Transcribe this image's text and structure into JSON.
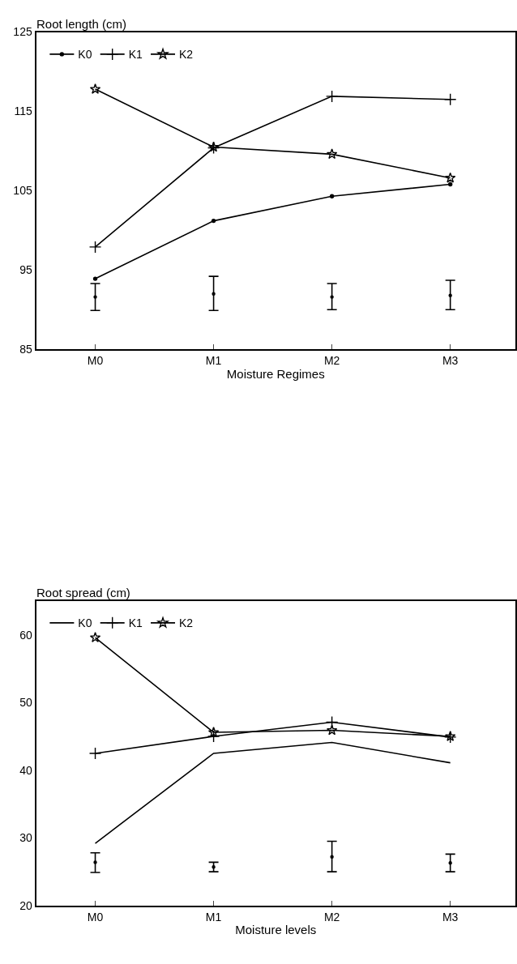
{
  "chart_data": [
    {
      "type": "line",
      "ylabel": "Root length (cm)",
      "xlabel": "Moisture Regimes",
      "categories": [
        "M0",
        "M1",
        "M2",
        "M3"
      ],
      "ylim": [
        85,
        125
      ],
      "yticks": [
        85,
        95,
        105,
        115,
        125
      ],
      "legend": "top left",
      "line_style": "solid",
      "series": [
        {
          "name": "K0",
          "color": "#000000",
          "marker": "circle",
          "values": [
            93.9,
            101.2,
            104.3,
            105.8
          ]
        },
        {
          "name": "K1",
          "color": "#000000",
          "marker": "cross",
          "values": [
            97.9,
            110.4,
            116.9,
            116.5
          ]
        },
        {
          "name": "K2",
          "color": "#000000",
          "marker": "star",
          "values": [
            117.8,
            110.5,
            109.6,
            106.6
          ]
        },
        {
          "type": "scatter",
          "color": "#000000",
          "marker": "circle",
          "values": [
            91.6,
            92.0,
            91.6,
            91.8
          ],
          "errors": [
            [
              89.9,
              93.3
            ],
            [
              89.9,
              94.2
            ],
            [
              90.0,
              93.3
            ],
            [
              90.0,
              93.7
            ]
          ]
        }
      ]
    },
    {
      "type": "line",
      "ylabel": "Root spread (cm)",
      "xlabel": "Moisture levels",
      "categories": [
        "M0",
        "M1",
        "M2",
        "M3"
      ],
      "ylim": [
        20,
        65
      ],
      "yticks": [
        20,
        30,
        40,
        50,
        60
      ],
      "legend": "top left",
      "line_style": "solid",
      "series": [
        {
          "name": "K0",
          "color": "#000000",
          "marker": "none",
          "values": [
            29.2,
            42.5,
            44.1,
            41.1
          ]
        },
        {
          "name": "K1",
          "color": "#000000",
          "marker": "cross",
          "values": [
            42.5,
            45.0,
            47.1,
            44.9
          ]
        },
        {
          "name": "K2",
          "color": "#000000",
          "marker": "star",
          "values": [
            59.6,
            45.6,
            45.9,
            45.0
          ]
        },
        {
          "type": "scatter",
          "color": "#000000",
          "marker": "circle",
          "values": [
            26.4,
            25.7,
            27.2,
            26.3
          ],
          "errors": [
            [
              24.9,
              27.8
            ],
            [
              25.0,
              26.4
            ],
            [
              25.0,
              29.5
            ],
            [
              25.0,
              27.6
            ]
          ]
        }
      ]
    }
  ]
}
